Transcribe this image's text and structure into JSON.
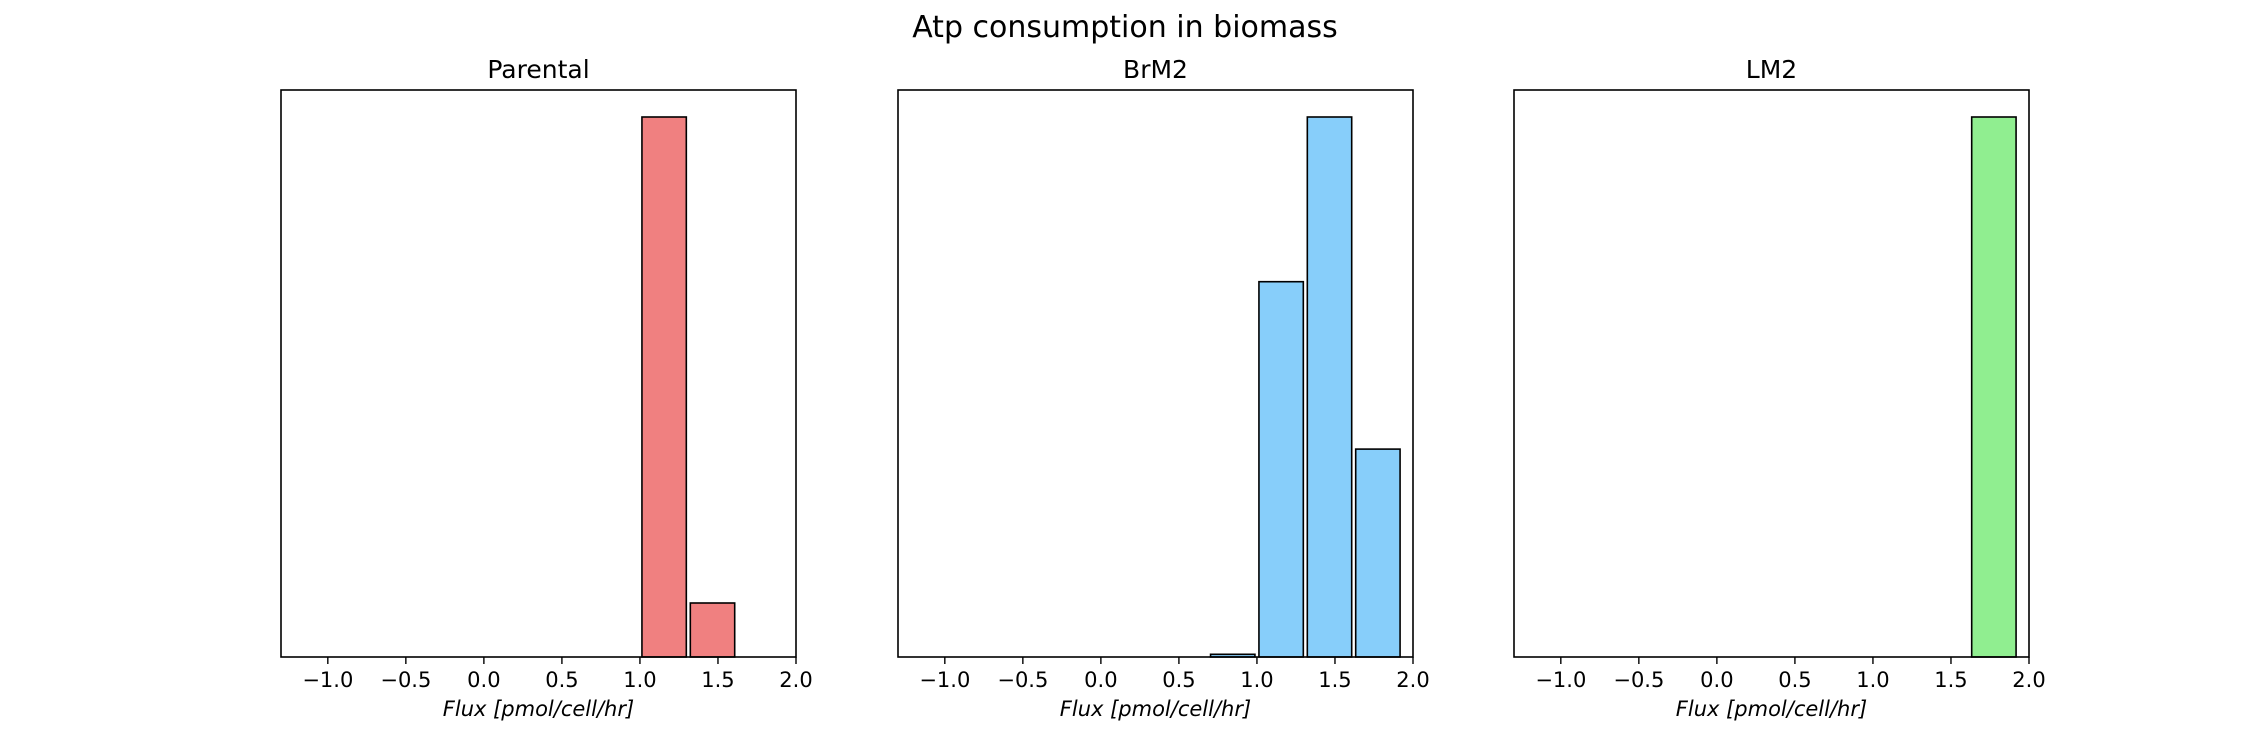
{
  "figure": {
    "suptitle": "Atp consumption in biomass"
  },
  "chart_data": [
    {
      "type": "bar",
      "title": "Parental",
      "xlabel": "Flux [pmol/cell/hr]",
      "ylabel": "",
      "xlim": [
        -1.3,
        2.0
      ],
      "ylim": [
        0,
        1.05
      ],
      "xticks": [
        -1.0,
        -0.5,
        0.0,
        0.5,
        1.0,
        1.5,
        2.0
      ],
      "xtick_labels": [
        "−1.0",
        "−0.5",
        "0.0",
        "0.5",
        "1.0",
        "1.5",
        "2.0"
      ],
      "yticks_visible": false,
      "color": "#F08080",
      "bars": [
        {
          "x_start": 1.0,
          "x_end": 1.31,
          "value": 1.0
        },
        {
          "x_start": 1.31,
          "x_end": 1.62,
          "value": 0.1
        }
      ]
    },
    {
      "type": "bar",
      "title": "BrM2",
      "xlabel": "Flux [pmol/cell/hr]",
      "ylabel": "",
      "xlim": [
        -1.3,
        2.0
      ],
      "ylim": [
        0,
        1.05
      ],
      "xticks": [
        -1.0,
        -0.5,
        0.0,
        0.5,
        1.0,
        1.5,
        2.0
      ],
      "xtick_labels": [
        "−1.0",
        "−0.5",
        "0.0",
        "0.5",
        "1.0",
        "1.5",
        "2.0"
      ],
      "yticks_visible": false,
      "color": "#87CEFA",
      "bars": [
        {
          "x_start": 0.69,
          "x_end": 1.0,
          "value": 0.005
        },
        {
          "x_start": 1.0,
          "x_end": 1.31,
          "value": 0.695
        },
        {
          "x_start": 1.31,
          "x_end": 1.62,
          "value": 1.0
        },
        {
          "x_start": 1.62,
          "x_end": 1.93,
          "value": 0.385
        }
      ]
    },
    {
      "type": "bar",
      "title": "LM2",
      "xlabel": "Flux [pmol/cell/hr]",
      "ylabel": "",
      "xlim": [
        -1.3,
        2.0
      ],
      "ylim": [
        0,
        1.05
      ],
      "xticks": [
        -1.0,
        -0.5,
        0.0,
        0.5,
        1.0,
        1.5,
        2.0
      ],
      "xtick_labels": [
        "−1.0",
        "−0.5",
        "0.0",
        "0.5",
        "1.0",
        "1.5",
        "2.0"
      ],
      "yticks_visible": false,
      "color": "#90EE90",
      "bars": [
        {
          "x_start": 1.62,
          "x_end": 1.93,
          "value": 1.0
        }
      ]
    }
  ]
}
